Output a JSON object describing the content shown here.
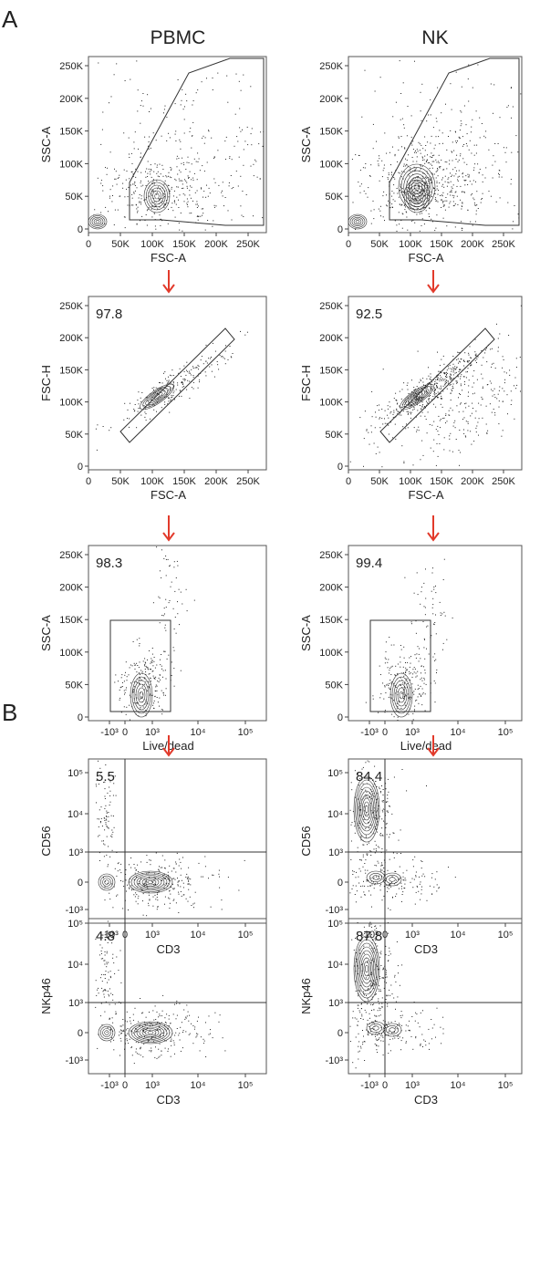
{
  "panel_letters": [
    "A",
    "B"
  ],
  "columns": [
    "PBMC",
    "NK"
  ],
  "rows": [
    {
      "id": "scatter",
      "x_label": "FSC-A",
      "y_label": "SSC-A",
      "x_ticks": [
        "0",
        "50K",
        "100K",
        "150K",
        "200K",
        "250K"
      ],
      "y_ticks": [
        "0",
        "50K",
        "100K",
        "150K",
        "200K",
        "250K"
      ],
      "gate_values": [
        "",
        ""
      ]
    },
    {
      "id": "singlets",
      "x_label": "FSC-A",
      "y_label": "FSC-H",
      "x_ticks": [
        "0",
        "50K",
        "100K",
        "150K",
        "200K",
        "250K"
      ],
      "y_ticks": [
        "0",
        "50K",
        "100K",
        "150K",
        "200K",
        "250K"
      ],
      "gate_values": [
        "97.8",
        "92.5"
      ]
    },
    {
      "id": "viability",
      "x_label": "Live/dead",
      "y_label": "SSC-A",
      "x_ticks": [
        "-10³",
        "0",
        "10³",
        "10⁴",
        "10⁵"
      ],
      "y_ticks": [
        "0",
        "50K",
        "100K",
        "150K",
        "200K",
        "250K"
      ],
      "gate_values": [
        "98.3",
        "99.4"
      ]
    },
    {
      "id": "cd56",
      "x_label": "CD3",
      "y_label": "CD56",
      "x_ticks": [
        "-10³",
        "0",
        "10³",
        "10⁴",
        "10⁵"
      ],
      "y_ticks": [
        "-10³",
        "0",
        "10³",
        "10⁴",
        "10⁵"
      ],
      "gate_values": [
        "5.5",
        "84.4"
      ]
    },
    {
      "id": "nkp46",
      "x_label": "CD3",
      "y_label": "NKp46",
      "x_ticks": [
        "-10³",
        "0",
        "10³",
        "10⁴",
        "10⁵"
      ],
      "y_ticks": [
        "-10³",
        "0",
        "10³",
        "10⁴",
        "10⁵"
      ],
      "gate_values": [
        "4.8",
        "87.8"
      ]
    }
  ]
}
